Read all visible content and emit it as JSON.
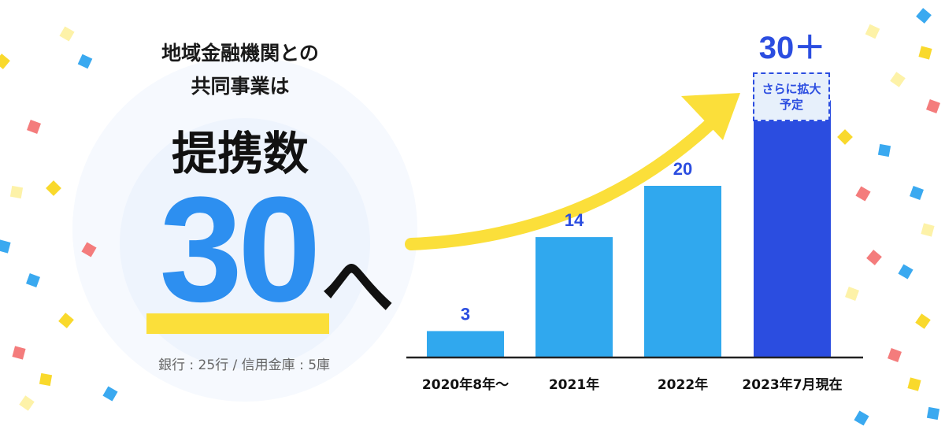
{
  "headline": {
    "line1": "地域金融機関との",
    "line2": "共同事業は",
    "big_label": "提携数",
    "big_number": "30",
    "big_suffix": "へ",
    "breakdown": "銀行 : 25行 / 信用金庫 : 5庫"
  },
  "chart_data": {
    "type": "bar",
    "categories": [
      "2020年8年〜",
      "2021年",
      "2022年",
      "2023年7月現在"
    ],
    "values": [
      3,
      14,
      20,
      30
    ],
    "value_labels": [
      "3",
      "14",
      "20",
      "30＋"
    ],
    "last_bar_note": "さらに拡大予定",
    "title": "",
    "xlabel": "",
    "ylabel": "",
    "ylim": [
      0,
      30
    ],
    "grid": false
  },
  "colors": {
    "bar": "#30a8ee",
    "bar_highlight": "#2b4de0",
    "value_label": "#2b4de0",
    "arrow": "#fbdf3a",
    "big_number": "#2d8ff0"
  }
}
